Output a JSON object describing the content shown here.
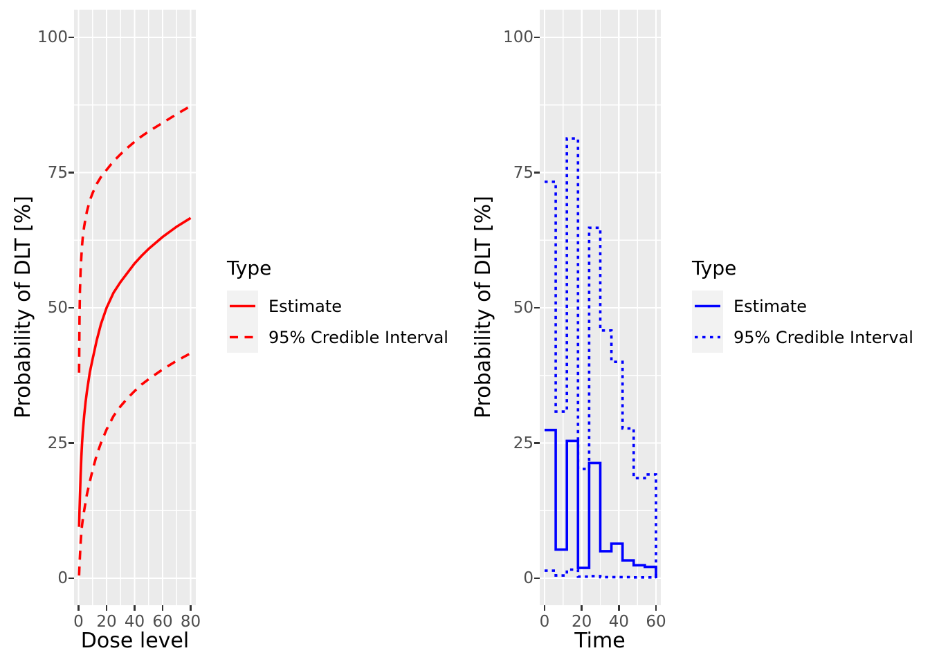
{
  "figure": {
    "background": "#FFFFFF",
    "panel_background": "#EBEBEB",
    "grid_color": "#FFFFFF",
    "tick_text_color": "#4D4D4D",
    "tick_mark_color": "#333333",
    "legend_key_background": "#F2F2F2"
  },
  "chart_data": [
    {
      "type": "line",
      "title": "",
      "xlabel": "Dose level",
      "ylabel": "Probability of DLT [%]",
      "color": "#FF0000",
      "xlim": [
        -4,
        84
      ],
      "ylim": [
        -5,
        105
      ],
      "grid": true,
      "x_ticks": [
        0,
        20,
        40,
        60,
        80
      ],
      "y_ticks": [
        0,
        25,
        50,
        75,
        100
      ],
      "x_minor": [
        10,
        30,
        50,
        70
      ],
      "y_minor": [
        12.5,
        37.5,
        62.5,
        87.5
      ],
      "legend": {
        "title": "Type",
        "position": "right",
        "items": [
          {
            "label": "Estimate",
            "linetype": "solid"
          },
          {
            "label": "95% Credible Interval",
            "linetype": "dashed"
          }
        ]
      },
      "series": [
        {
          "name": "Estimate",
          "linetype": "solid",
          "x": [
            0.4,
            0.7,
            1,
            1.5,
            2,
            2.5,
            3,
            4,
            5,
            6,
            8,
            10,
            13,
            16,
            20,
            25,
            30,
            35,
            40,
            45,
            50,
            60,
            70,
            80
          ],
          "y": [
            9.5,
            12.5,
            15,
            19,
            22.5,
            25,
            27,
            30,
            32.5,
            34.5,
            38,
            40.5,
            44,
            47,
            50,
            52.8,
            54.8,
            56.5,
            58.2,
            59.6,
            60.9,
            63.1,
            65,
            66.6
          ]
        },
        {
          "name": "95% Credible Interval upper",
          "linetype": "dashed",
          "x": [
            0.4,
            0.7,
            1,
            1.5,
            2,
            2.5,
            3,
            4,
            5,
            6,
            8,
            10,
            13,
            16,
            20,
            25,
            30,
            35,
            40,
            45,
            50,
            60,
            70,
            80
          ],
          "y": [
            38,
            48,
            53,
            57,
            59.5,
            61.5,
            63,
            65,
            66.5,
            67.8,
            69.8,
            71.2,
            72.9,
            74.2,
            75.5,
            77.1,
            78.4,
            79.6,
            80.7,
            81.7,
            82.6,
            84.2,
            85.8,
            87.3
          ]
        },
        {
          "name": "95% Credible Interval lower",
          "linetype": "dashed",
          "x": [
            0.4,
            0.7,
            1,
            1.5,
            2,
            2.5,
            3,
            4,
            5,
            6,
            8,
            10,
            13,
            16,
            20,
            25,
            30,
            35,
            40,
            45,
            50,
            60,
            70,
            80
          ],
          "y": [
            0.5,
            2.5,
            4,
            6.5,
            8.5,
            9.8,
            10.8,
            12.5,
            14,
            15.5,
            17.8,
            20,
            22.8,
            25,
            27.5,
            30,
            31.8,
            33.3,
            34.6,
            35.8,
            36.8,
            38.6,
            40.2,
            41.6
          ]
        }
      ]
    },
    {
      "type": "step",
      "title": "",
      "xlabel": "Time",
      "ylabel": "Probability of DLT [%]",
      "color": "#0000FF",
      "xlim": [
        -3,
        63
      ],
      "ylim": [
        -5,
        105
      ],
      "grid": true,
      "x_ticks": [
        0,
        20,
        40,
        60
      ],
      "y_ticks": [
        0,
        25,
        50,
        75,
        100
      ],
      "x_minor": [
        10,
        30,
        50
      ],
      "y_minor": [
        12.5,
        37.5,
        62.5,
        87.5
      ],
      "legend": {
        "title": "Type",
        "position": "right",
        "items": [
          {
            "label": "Estimate",
            "linetype": "solid"
          },
          {
            "label": "95% Credible Interval",
            "linetype": "dotted"
          }
        ]
      },
      "breaks": [
        0,
        6,
        12,
        18,
        24,
        30,
        36,
        42,
        48,
        54,
        60
      ],
      "series": [
        {
          "name": "Estimate",
          "linetype": "solid",
          "values": [
            27.4,
            5.3,
            25.4,
            1.9,
            21.3,
            5.0,
            6.4,
            3.3,
            2.4,
            2.1
          ],
          "end": 0
        },
        {
          "name": "95% Credible Interval upper",
          "linetype": "dotted",
          "values": [
            73.3,
            30.8,
            81.3,
            20.2,
            64.8,
            45.8,
            40.0,
            27.7,
            18.5,
            19.2
          ],
          "end": 0
        },
        {
          "name": "95% Credible Interval lower",
          "linetype": "dotted",
          "values": [
            1.4,
            0.5,
            1.6,
            0.3,
            0.4,
            0.2,
            0.2,
            0.2,
            0.15,
            0.15
          ],
          "end": 0
        }
      ]
    }
  ]
}
